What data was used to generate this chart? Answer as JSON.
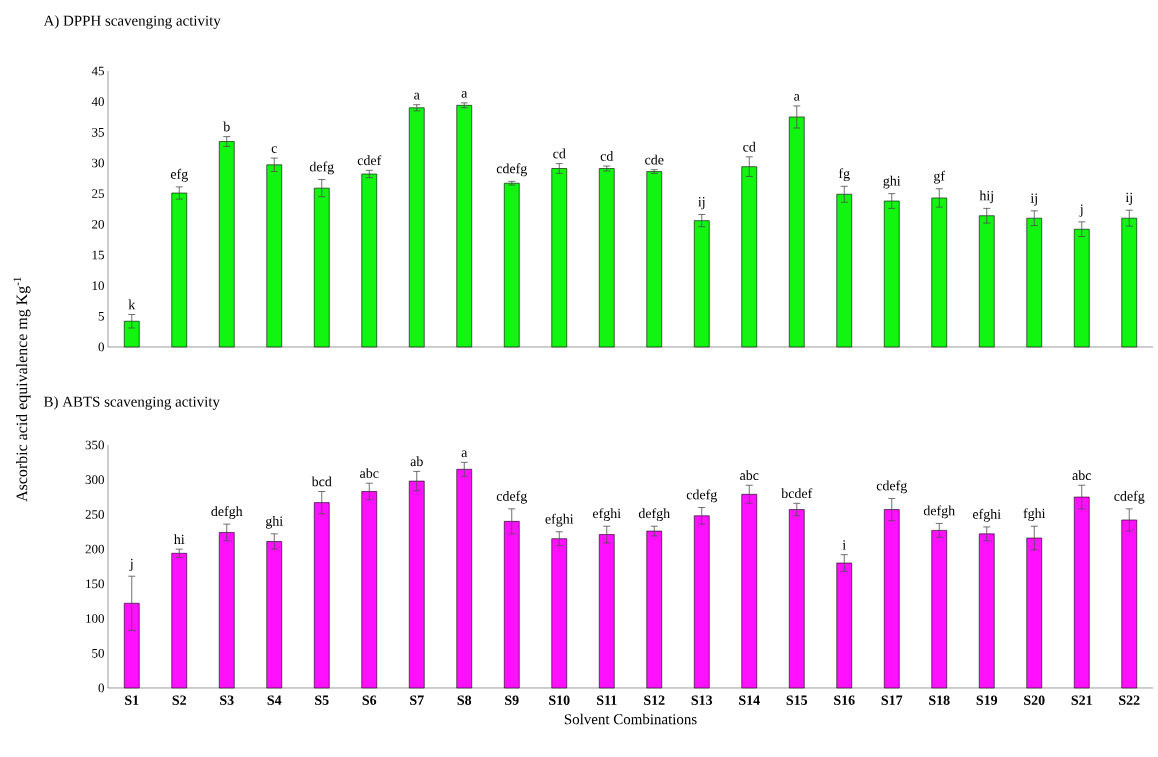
{
  "chart_data": [
    {
      "type": "bar",
      "title": "A) DPPH scavenging activity",
      "ylabel": "Ascorbic acid equivalence mg Kg$^{-1}$",
      "categories": [
        null,
        null,
        null,
        null,
        null,
        null,
        null,
        null,
        null,
        null,
        null,
        null,
        null,
        null,
        null,
        null,
        null,
        null,
        null,
        null,
        null,
        null
      ],
      "values": [
        4.2,
        25.1,
        33.5,
        29.7,
        25.9,
        28.2,
        39.0,
        39.4,
        26.7,
        29.1,
        29.1,
        28.6,
        20.6,
        29.4,
        37.5,
        24.9,
        23.8,
        24.3,
        21.4,
        21.0,
        19.2,
        21.0
      ],
      "errors": [
        1.1,
        1.0,
        0.8,
        1.1,
        1.4,
        0.6,
        0.5,
        0.4,
        0.3,
        0.8,
        0.4,
        0.3,
        1.0,
        1.6,
        1.8,
        1.3,
        1.2,
        1.5,
        1.2,
        1.2,
        1.2,
        1.3
      ],
      "color": "#11f511",
      "ylim": [
        0,
        45
      ],
      "yticks": [
        0,
        5,
        10,
        15,
        20,
        25,
        30,
        35,
        40,
        45
      ],
      "tick_labels": "y",
      "annotations": [
        {
          "text": "k",
          "y": 5.3
        },
        {
          "text": "efg",
          "y": 26.1
        },
        {
          "text": "b",
          "y": 34.3
        },
        {
          "text": "c",
          "y": 30.8
        },
        {
          "text": "defg",
          "y": 27.3
        },
        {
          "text": "cdef",
          "y": 28.8
        },
        {
          "text": "a",
          "y": 39.5
        },
        {
          "text": "a",
          "y": 39.8
        },
        {
          "text": "cdefg",
          "y": 27.0
        },
        {
          "text": "cd",
          "y": 29.9
        },
        {
          "text": "cd",
          "y": 29.5
        },
        {
          "text": "cde",
          "y": 28.9
        },
        {
          "text": "ij",
          "y": 21.6
        },
        {
          "text": "cd",
          "y": 31.0
        },
        {
          "text": "a",
          "y": 39.3
        },
        {
          "text": "fg",
          "y": 26.2
        },
        {
          "text": "ghi",
          "y": 25.0
        },
        {
          "text": "gf",
          "y": 25.8
        },
        {
          "text": "hij",
          "y": 22.6
        },
        {
          "text": "ij",
          "y": 22.2
        },
        {
          "text": "j",
          "y": 20.4
        },
        {
          "text": "ij",
          "y": 22.3
        }
      ]
    },
    {
      "type": "bar",
      "title": "B) ABTS scavenging activity",
      "xlabel": "Solvent Combinations",
      "categories": [
        "S1",
        "S2",
        "S3",
        "S4",
        "S5",
        "S6",
        "S7",
        "S8",
        "S9",
        "S10",
        "S11",
        "S12",
        "S13",
        "S14",
        "S15",
        "S16",
        "S17",
        "S18",
        "S19",
        "S20",
        "S21",
        "S22"
      ],
      "values": [
        122,
        194,
        224,
        211,
        267,
        283,
        298,
        315,
        240,
        215,
        221,
        226,
        248,
        279,
        257,
        180,
        257,
        227,
        222,
        216,
        275,
        242
      ],
      "errors": [
        39,
        6,
        12,
        11,
        16,
        12,
        14,
        10,
        18,
        10,
        12,
        7,
        12,
        13,
        9,
        12,
        16,
        10,
        10,
        17,
        17,
        16
      ],
      "color": "#ff11ff",
      "ylim": [
        0,
        350
      ],
      "yticks": [
        0,
        50,
        100,
        150,
        200,
        250,
        300,
        350
      ],
      "annotations": [
        {
          "text": "j",
          "x": "S1",
          "y": 161
        },
        {
          "text": "hi",
          "x": "S2",
          "y": 200
        },
        {
          "text": "defgh",
          "x": "S3",
          "y": 236
        },
        {
          "text": "ghi",
          "x": "S4",
          "y": 222
        },
        {
          "text": "bcd",
          "x": "S5",
          "y": 283
        },
        {
          "text": "abc",
          "x": "S6",
          "y": 295
        },
        {
          "text": "ab",
          "x": "S7",
          "y": 312
        },
        {
          "text": "a",
          "x": "S8",
          "y": 325
        },
        {
          "text": "cdefg",
          "x": "S9",
          "y": 258
        },
        {
          "text": "efghi",
          "x": "S10",
          "y": 225
        },
        {
          "text": "efghi",
          "x": "S11",
          "y": 233
        },
        {
          "text": "defgh",
          "x": "S12",
          "y": 233
        },
        {
          "text": "cdefg",
          "x": "S13",
          "y": 260
        },
        {
          "text": "abc",
          "x": "S14",
          "y": 292
        },
        {
          "text": "bcdef",
          "x": "S15",
          "y": 266
        },
        {
          "text": "i",
          "x": "S16",
          "y": 192
        },
        {
          "text": "cdefg",
          "x": "S17",
          "y": 273
        },
        {
          "text": "defgh",
          "x": "S18",
          "y": 237
        },
        {
          "text": "efghi",
          "x": "S19",
          "y": 232
        },
        {
          "text": "fghi",
          "x": "S20",
          "y": 233
        },
        {
          "text": "abc",
          "x": "S21",
          "y": 292
        },
        {
          "text": "cdefg",
          "x": "S22",
          "y": 258
        }
      ]
    }
  ]
}
